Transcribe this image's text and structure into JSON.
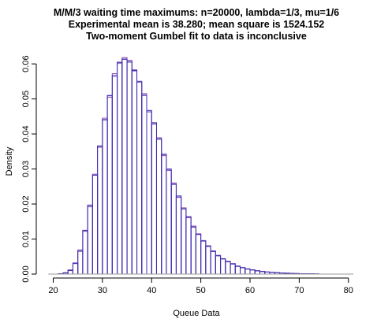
{
  "chart_data": {
    "type": "bar",
    "title_lines": [
      "M/M/3 waiting time maximums: n=20000, lambda=1/3, mu=1/6",
      "Experimental mean is 38.280; mean square is 1524.152",
      "Two-moment Gumbel fit to data is inconclusive"
    ],
    "xlabel": "Queue Data",
    "ylabel": "Density",
    "xlim": [
      18,
      81
    ],
    "ylim": [
      0,
      0.0625
    ],
    "xticks": [
      "20",
      "30",
      "40",
      "50",
      "60",
      "70",
      "80"
    ],
    "xtick_values": [
      20,
      30,
      40,
      50,
      60,
      70,
      80
    ],
    "yticks": [
      "0.00",
      "0.01",
      "0.02",
      "0.03",
      "0.04",
      "0.05",
      "0.06"
    ],
    "ytick_values": [
      0,
      0.01,
      0.02,
      0.03,
      0.04,
      0.05,
      0.06
    ],
    "bin_width": 1,
    "bin_start": 19,
    "series": [
      {
        "color": "#3a2db0",
        "values": [
          0.0,
          0.0,
          0.0001,
          0.0003,
          0.001,
          0.003,
          0.0065,
          0.0125,
          0.0197,
          0.0282,
          0.0366,
          0.0441,
          0.0509,
          0.0565,
          0.0603,
          0.0613,
          0.0605,
          0.0581,
          0.0549,
          0.051,
          0.0467,
          0.0432,
          0.0386,
          0.0341,
          0.03,
          0.0256,
          0.0223,
          0.0186,
          0.0164,
          0.0134,
          0.0113,
          0.0095,
          0.0079,
          0.0066,
          0.0052,
          0.0044,
          0.0036,
          0.0029,
          0.0022,
          0.0018,
          0.0015,
          0.0012,
          0.0009,
          0.0007,
          0.0006,
          0.0005,
          0.0004,
          0.0003,
          0.0002,
          0.0002,
          0.0001,
          0.0001,
          0.0001,
          0.0001,
          0.0,
          0.0,
          0.0,
          0.0,
          0.0,
          0.0,
          0.0,
          0.0
        ]
      },
      {
        "color": "#8c3fae",
        "values": [
          0.0,
          0.0,
          0.0001,
          0.0004,
          0.0012,
          0.0032,
          0.0069,
          0.0122,
          0.0192,
          0.0285,
          0.0362,
          0.0445,
          0.0505,
          0.0572,
          0.0605,
          0.0618,
          0.061,
          0.0583,
          0.0548,
          0.0515,
          0.0463,
          0.0428,
          0.0389,
          0.0338,
          0.0296,
          0.026,
          0.0219,
          0.0189,
          0.0161,
          0.0137,
          0.0115,
          0.0094,
          0.0081,
          0.0064,
          0.0053,
          0.0043,
          0.0035,
          0.003,
          0.0023,
          0.0019,
          0.0014,
          0.0012,
          0.001,
          0.0008,
          0.0006,
          0.0005,
          0.0004,
          0.0003,
          0.0003,
          0.0002,
          0.0002,
          0.0001,
          0.0001,
          0.0001,
          0.0001,
          0.0,
          0.0,
          0.0,
          0.0,
          0.0,
          0.0,
          0.0
        ]
      },
      {
        "color": "#a7a7e0",
        "values": [
          0.0,
          0.0,
          0.0001,
          0.0003,
          0.0011,
          0.0031,
          0.0067,
          0.0124,
          0.0195,
          0.0283,
          0.0364,
          0.0439,
          0.0511,
          0.0568,
          0.0601,
          0.0615,
          0.0607,
          0.0579,
          0.0551,
          0.0512,
          0.0466,
          0.043,
          0.0384,
          0.0344,
          0.0298,
          0.0258,
          0.0221,
          0.0188,
          0.0162,
          0.0135,
          0.0114,
          0.0096,
          0.008,
          0.0065,
          0.0054,
          0.0043,
          0.0037,
          0.0028,
          0.0023,
          0.0018,
          0.0015,
          0.0011,
          0.0009,
          0.0007,
          0.0006,
          0.0005,
          0.0004,
          0.0003,
          0.0002,
          0.0002,
          0.0001,
          0.0001,
          0.0001,
          0.0001,
          0.0,
          0.0,
          0.0,
          0.0,
          0.0,
          0.0,
          0.0,
          0.0
        ]
      }
    ]
  }
}
